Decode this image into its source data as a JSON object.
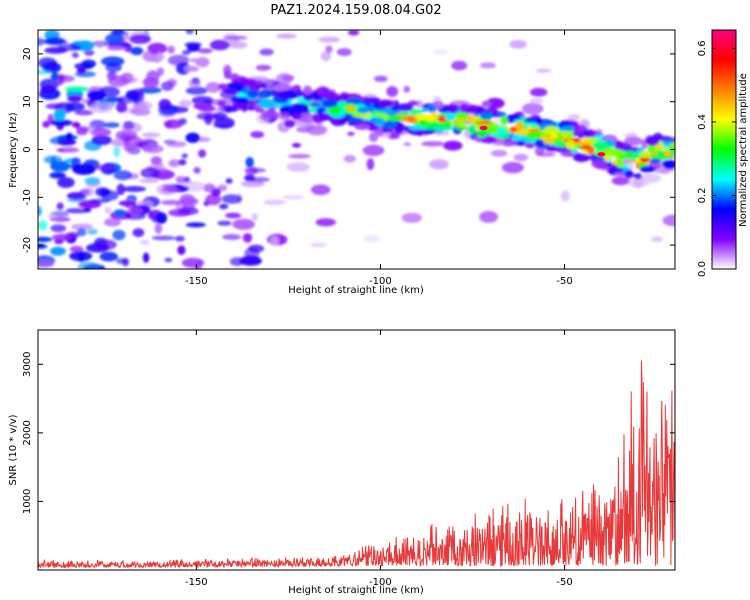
{
  "title": "PAZ1.2024.159.08.04.G02",
  "chart_data": [
    {
      "type": "heatmap",
      "xlabel": "Height of straight line (km)",
      "ylabel": "Frequency (Hz)",
      "xlim": [
        -193,
        -20
      ],
      "ylim": [
        -25,
        25
      ],
      "xticks": [
        -150,
        -100,
        -50
      ],
      "yticks": [
        20,
        10,
        0,
        -10,
        -20
      ],
      "colorbar": {
        "label": "Normalized spectral amplitude",
        "range": [
          0,
          0.65
        ],
        "ticks": [
          0.0,
          0.2,
          0.4,
          0.6
        ],
        "colormap": [
          "#ffffff",
          "#8000ff",
          "#0000ff",
          "#00ffff",
          "#00ff00",
          "#ffff00",
          "#ff8000",
          "#ff0000",
          "#ff0080"
        ]
      },
      "ridge": {
        "x": [
          -140,
          -130,
          -120,
          -110,
          -100,
          -90,
          -80,
          -70,
          -60,
          -50,
          -45,
          -40,
          -35,
          -30,
          -25,
          -20
        ],
        "y": [
          12,
          10.5,
          9.5,
          8.5,
          7,
          6.5,
          6,
          5,
          4,
          2.5,
          1,
          0,
          -2,
          -3,
          0,
          -1
        ]
      }
    },
    {
      "type": "line",
      "xlabel": "Height of straight line (km)",
      "ylabel": "SNR (10 * v/v)",
      "xlim": [
        -193,
        -20
      ],
      "ylim": [
        0,
        3500
      ],
      "xticks": [
        -150,
        -100,
        -50
      ],
      "yticks": [
        1000,
        2000,
        3000
      ],
      "color": "#e8393a",
      "envelope": {
        "x": [
          -193,
          -160,
          -130,
          -110,
          -100,
          -90,
          -80,
          -70,
          -60,
          -50,
          -40,
          -35,
          -30,
          -25,
          -20
        ],
        "y": [
          150,
          160,
          180,
          220,
          450,
          600,
          800,
          900,
          1150,
          1050,
          1350,
          1800,
          3500,
          2700,
          2750
        ]
      }
    }
  ]
}
